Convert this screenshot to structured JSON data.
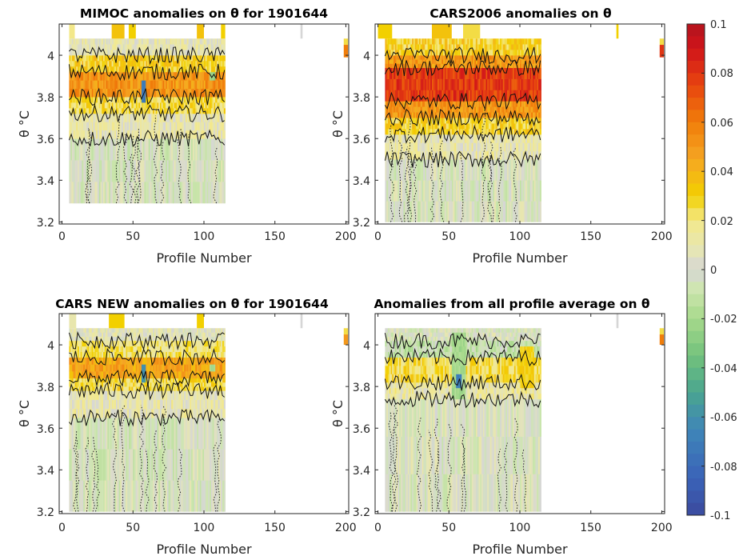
{
  "chart_data": [
    {
      "type": "heatmap",
      "title": "MIMOC anomalies on θ  for 1901644",
      "xlabel": "Profile Number",
      "ylabel": "θ °C",
      "xlim": [
        -2,
        202
      ],
      "ylim": [
        3.19,
        4.15
      ],
      "xticks": [
        "0",
        "50",
        "100",
        "150",
        "200"
      ],
      "yticks": [
        "3.2",
        "3.4",
        "3.6",
        "3.8",
        "4"
      ],
      "ybottom": 3.29,
      "ytop": 4.08,
      "profile_range": [
        5,
        115
      ],
      "bands": [
        {
          "theta": [
            3.29,
            3.6
          ],
          "value": -0.002
        },
        {
          "theta": [
            3.6,
            3.72
          ],
          "value": 0.01
        },
        {
          "theta": [
            3.72,
            3.8
          ],
          "value": 0.025
        },
        {
          "theta": [
            3.8,
            3.92
          ],
          "value": 0.052
        },
        {
          "theta": [
            3.92,
            4.0
          ],
          "value": 0.03
        },
        {
          "theta": [
            4.0,
            4.08
          ],
          "value": 0.008
        }
      ],
      "anomaly_stripes": [
        {
          "x": [
            56,
            59
          ],
          "theta": [
            3.78,
            3.9
          ],
          "value": -0.07
        },
        {
          "x": [
            104,
            108
          ],
          "theta": [
            3.85,
            3.92
          ],
          "value": -0.025
        }
      ],
      "top_blocks": [
        {
          "x": [
            5,
            9
          ],
          "value": 0.02
        },
        {
          "x": [
            35,
            44
          ],
          "value": 0.035
        },
        {
          "x": [
            47,
            52
          ],
          "value": 0.03
        },
        {
          "x": [
            95,
            100
          ],
          "value": 0.035
        },
        {
          "x": [
            112,
            115
          ],
          "value": 0.03
        },
        {
          "x": [
            168,
            169.5
          ],
          "value": 0.0
        }
      ],
      "edge_column": {
        "x": [
          198.5,
          201.5
        ],
        "theta": [
          3.99,
          4.05
        ],
        "value": 0.06
      }
    },
    {
      "type": "heatmap",
      "title": "CARS2006 anomalies on θ",
      "xlabel": "Profile Number",
      "ylabel": "θ °C",
      "xlim": [
        -2,
        202
      ],
      "ylim": [
        3.19,
        4.15
      ],
      "xticks": [
        "0",
        "50",
        "100",
        "150",
        "200"
      ],
      "yticks": [
        "3.2",
        "3.4",
        "3.6",
        "3.8",
        "4"
      ],
      "ybottom": 3.2,
      "ytop": 4.08,
      "profile_range": [
        5,
        115
      ],
      "bands": [
        {
          "theta": [
            3.2,
            3.5
          ],
          "value": -0.001
        },
        {
          "theta": [
            3.5,
            3.62
          ],
          "value": 0.01
        },
        {
          "theta": [
            3.62,
            3.7
          ],
          "value": 0.028
        },
        {
          "theta": [
            3.7,
            3.78
          ],
          "value": 0.05
        },
        {
          "theta": [
            3.78,
            3.94
          ],
          "value": 0.078
        },
        {
          "theta": [
            3.94,
            4.0
          ],
          "value": 0.05
        },
        {
          "theta": [
            4.0,
            4.08
          ],
          "value": 0.03
        }
      ],
      "anomaly_stripes": [],
      "top_blocks": [
        {
          "x": [
            0,
            10
          ],
          "value": 0.03
        },
        {
          "x": [
            38,
            52
          ],
          "value": 0.035
        },
        {
          "x": [
            60,
            72
          ],
          "value": 0.025
        },
        {
          "x": [
            168,
            169.5
          ],
          "value": 0.03
        }
      ],
      "edge_column": {
        "x": [
          198.5,
          201.5
        ],
        "theta": [
          3.99,
          4.05
        ],
        "value": 0.08
      }
    },
    {
      "type": "heatmap",
      "title": "CARS NEW anomalies on θ for 1901644",
      "xlabel": "Profile Number",
      "ylabel": "θ °C",
      "xlim": [
        -2,
        202
      ],
      "ylim": [
        3.19,
        4.15
      ],
      "xticks": [
        "0",
        "50",
        "100",
        "150",
        "200"
      ],
      "yticks": [
        "3.2",
        "3.4",
        "3.6",
        "3.8",
        "4"
      ],
      "ybottom": 3.2,
      "ytop": 4.08,
      "profile_range": [
        5,
        115
      ],
      "bands": [
        {
          "theta": [
            3.2,
            3.65
          ],
          "value": -0.002
        },
        {
          "theta": [
            3.65,
            3.78
          ],
          "value": 0.01
        },
        {
          "theta": [
            3.78,
            3.84
          ],
          "value": 0.025
        },
        {
          "theta": [
            3.84,
            3.94
          ],
          "value": 0.045
        },
        {
          "theta": [
            3.94,
            4.02
          ],
          "value": 0.02
        },
        {
          "theta": [
            4.02,
            4.08
          ],
          "value": 0.005
        }
      ],
      "anomaly_stripes": [
        {
          "x": [
            56,
            59
          ],
          "theta": [
            3.82,
            3.9
          ],
          "value": -0.06
        },
        {
          "x": [
            104,
            108
          ],
          "theta": [
            3.86,
            3.92
          ],
          "value": -0.02
        }
      ],
      "top_blocks": [
        {
          "x": [
            5,
            10
          ],
          "value": 0.01
        },
        {
          "x": [
            33,
            44
          ],
          "value": 0.03
        },
        {
          "x": [
            95,
            100
          ],
          "value": 0.03
        },
        {
          "x": [
            168,
            169.5
          ],
          "value": 0.0
        }
      ],
      "edge_column": {
        "x": [
          198.5,
          201.5
        ],
        "theta": [
          4.0,
          4.05
        ],
        "value": 0.05
      }
    },
    {
      "type": "heatmap",
      "title": "Anomalies from all profile average on θ",
      "xlabel": "Profile Number",
      "ylabel": "θ °C",
      "xlim": [
        -2,
        202
      ],
      "ylim": [
        3.19,
        4.15
      ],
      "xticks": [
        "0",
        "50",
        "100",
        "150",
        "200"
      ],
      "yticks": [
        "3.2",
        "3.4",
        "3.6",
        "3.8",
        "4"
      ],
      "ybottom": 3.2,
      "ytop": 4.08,
      "profile_range": [
        5,
        115
      ],
      "bands": [
        {
          "theta": [
            3.2,
            3.74
          ],
          "value": 0.0
        },
        {
          "theta": [
            3.74,
            3.82
          ],
          "value": 0.012
        },
        {
          "theta": [
            3.82,
            3.94
          ],
          "value": 0.025
        },
        {
          "theta": [
            3.94,
            4.02
          ],
          "value": -0.01
        },
        {
          "theta": [
            4.02,
            4.08
          ],
          "value": 0.0
        }
      ],
      "anomaly_stripes": [
        {
          "x": [
            52,
            62
          ],
          "theta": [
            3.72,
            4.05
          ],
          "value": -0.02
        },
        {
          "x": [
            55,
            59
          ],
          "theta": [
            3.8,
            3.88
          ],
          "value": -0.07
        },
        {
          "x": [
            100,
            110
          ],
          "theta": [
            3.8,
            4.0
          ],
          "value": 0.03
        }
      ],
      "top_blocks": [
        {
          "x": [
            168,
            169.5
          ],
          "value": 0.0
        }
      ],
      "edge_column": {
        "x": [
          198.5,
          201.5
        ],
        "theta": [
          4.0,
          4.05
        ],
        "value": 0.06
      }
    }
  ],
  "colorbar": {
    "min": -0.1,
    "max": 0.1,
    "ticks": [
      "0.1",
      "0.08",
      "0.06",
      "0.04",
      "0.02",
      "0",
      "-0.02",
      "-0.04",
      "-0.06",
      "-0.08",
      "-0.1"
    ],
    "levels": 40
  },
  "colormap": [
    {
      "v": -0.1,
      "c": "#3b4a9e"
    },
    {
      "v": -0.085,
      "c": "#3a63b8"
    },
    {
      "v": -0.065,
      "c": "#3f86b8"
    },
    {
      "v": -0.05,
      "c": "#4aa58f"
    },
    {
      "v": -0.035,
      "c": "#73c27c"
    },
    {
      "v": -0.02,
      "c": "#a6d98b"
    },
    {
      "v": -0.008,
      "c": "#cfe6b0"
    },
    {
      "v": 0.0,
      "c": "#d6d6d6"
    },
    {
      "v": 0.008,
      "c": "#e6e6b4"
    },
    {
      "v": 0.02,
      "c": "#f3e88a"
    },
    {
      "v": 0.03,
      "c": "#f2d000"
    },
    {
      "v": 0.045,
      "c": "#f5a623"
    },
    {
      "v": 0.06,
      "c": "#f07d0a"
    },
    {
      "v": 0.075,
      "c": "#e8450f"
    },
    {
      "v": 0.09,
      "c": "#d0141a"
    },
    {
      "v": 0.1,
      "c": "#b2141e"
    }
  ]
}
